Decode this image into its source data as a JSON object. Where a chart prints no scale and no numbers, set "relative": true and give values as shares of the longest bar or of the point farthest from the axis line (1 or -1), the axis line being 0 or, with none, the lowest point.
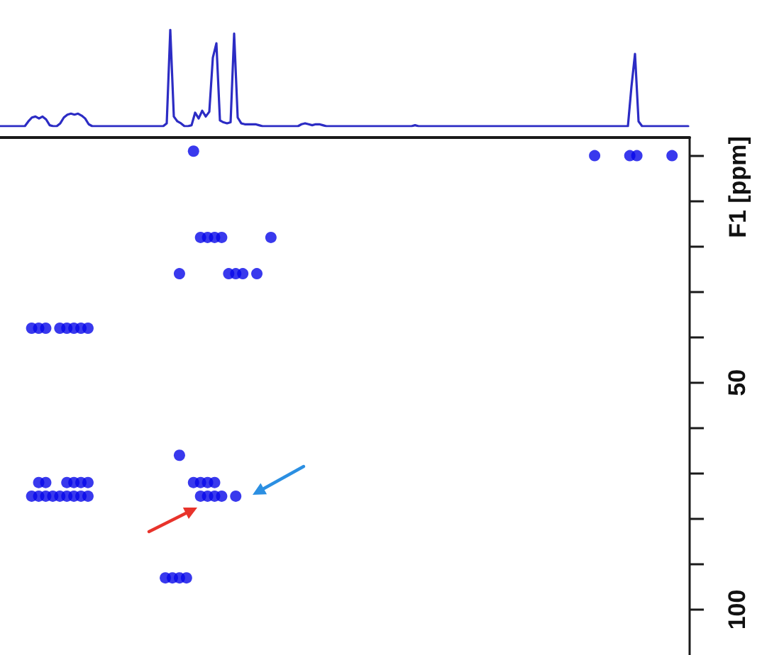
{
  "chart_data": [
    {
      "type": "line",
      "relative": true,
      "tick_labels": false,
      "marker": "none",
      "color": "#2c2cc4",
      "categories": [
        null,
        null,
        null,
        null,
        null,
        null,
        null,
        null,
        null,
        null,
        null,
        null,
        null,
        null,
        null,
        null,
        null,
        null,
        null,
        null,
        null,
        null,
        null,
        null,
        null,
        null,
        null,
        null,
        null,
        null,
        null,
        null,
        null,
        null,
        null,
        null,
        null,
        null,
        null,
        null,
        null,
        null,
        null,
        null,
        null,
        null,
        null,
        null,
        null,
        null,
        null,
        null,
        null,
        null,
        null,
        null,
        null,
        null,
        null,
        null,
        null,
        null,
        null,
        null,
        null,
        null,
        null,
        null,
        null,
        null,
        null,
        null,
        null,
        null,
        null,
        null,
        null,
        null,
        null,
        null,
        null,
        null,
        null,
        null,
        null,
        null,
        null,
        null,
        null,
        null,
        null,
        null,
        null,
        null,
        null,
        null,
        null,
        null,
        null,
        null,
        null,
        null,
        null,
        null,
        null,
        null,
        null,
        null,
        null,
        null,
        null,
        null,
        null,
        null,
        null,
        null,
        null,
        null,
        null,
        null,
        null,
        null,
        null,
        null,
        null,
        null,
        null,
        null,
        null,
        null,
        null,
        null,
        null,
        null,
        null,
        null,
        null,
        null,
        null,
        null,
        null,
        null,
        null,
        null,
        null,
        null,
        null,
        null,
        null,
        null,
        null,
        null,
        null,
        null,
        null,
        null,
        null,
        null,
        null,
        null,
        null,
        null,
        null,
        null,
        null,
        null,
        null,
        null,
        null,
        null,
        null,
        null,
        null,
        null,
        null,
        null,
        null,
        null,
        null,
        null,
        null,
        null,
        null,
        null,
        null,
        null,
        null,
        null,
        null,
        null,
        null,
        null,
        null,
        null,
        null
      ],
      "values": [
        0,
        0,
        0,
        0,
        0,
        0,
        0,
        0,
        0.05,
        0.09,
        0.1,
        0.08,
        0.1,
        0.07,
        0.01,
        0,
        0,
        0.03,
        0.09,
        0.12,
        0.13,
        0.12,
        0.13,
        0.11,
        0.08,
        0.02,
        0,
        0,
        0,
        0,
        0,
        0,
        0,
        0,
        0,
        0,
        0,
        0,
        0,
        0,
        0,
        0,
        0,
        0,
        0,
        0,
        0,
        0.03,
        1,
        0.1,
        0.05,
        0.03,
        0,
        0,
        0.01,
        0.14,
        0.08,
        0.16,
        0.1,
        0.15,
        0.71,
        0.86,
        0.06,
        0.04,
        0.03,
        0.04,
        0.96,
        0.09,
        0.03,
        0.02,
        0.02,
        0.02,
        0.02,
        0.01,
        0,
        0,
        0,
        0,
        0,
        0,
        0,
        0,
        0,
        0,
        0,
        0.02,
        0.03,
        0.02,
        0.01,
        0.02,
        0.02,
        0.01,
        0,
        0,
        0,
        0,
        0,
        0,
        0,
        0,
        0,
        0,
        0,
        0,
        0,
        0,
        0,
        0,
        0,
        0,
        0,
        0,
        0,
        0,
        0,
        0,
        0,
        0.01,
        0,
        0,
        0,
        0,
        0,
        0,
        0,
        0,
        0,
        0,
        0,
        0,
        0,
        0,
        0,
        0,
        0,
        0,
        0,
        0,
        0,
        0,
        0,
        0,
        0,
        0,
        0,
        0,
        0,
        0,
        0,
        0,
        0,
        0,
        0,
        0,
        0,
        0,
        0,
        0,
        0,
        0,
        0,
        0,
        0,
        0,
        0,
        0,
        0,
        0,
        0,
        0,
        0,
        0,
        0,
        0,
        0,
        0,
        0,
        0,
        0.41,
        0.75,
        0.05,
        0,
        0,
        0,
        0,
        0,
        0,
        0,
        0,
        0,
        0,
        0,
        0,
        0,
        0
      ]
    },
    {
      "type": "scatter",
      "tick_labels": "y",
      "marker": "circle",
      "ylabel": "F1 [ppm]",
      "ylim": [
        110,
        -4
      ],
      "yticks": [
        {
          "value": 0,
          "label": null
        },
        {
          "value": 10,
          "label": null
        },
        {
          "value": 20,
          "label": null
        },
        {
          "value": 30,
          "label": null
        },
        {
          "value": 40,
          "label": null
        },
        50,
        {
          "value": 60,
          "label": null
        },
        {
          "value": 70,
          "label": null
        },
        {
          "value": 80,
          "label": null
        },
        {
          "value": 90,
          "label": null
        },
        100
      ],
      "categories": [
        null,
        null,
        null,
        null,
        null,
        null,
        null,
        null,
        null,
        null,
        null,
        null,
        null,
        null,
        null,
        null,
        null,
        null,
        null,
        null,
        null,
        null,
        null,
        null,
        null,
        null,
        null,
        null,
        null,
        null,
        null,
        null,
        null,
        null,
        null,
        null,
        null,
        null,
        null,
        null,
        null,
        null,
        null,
        null,
        null,
        null,
        null,
        null,
        null,
        null,
        null,
        null,
        null,
        null,
        null,
        null,
        null,
        null,
        null,
        null,
        null,
        null,
        null,
        null,
        null,
        null,
        null,
        null,
        null,
        null,
        null,
        null,
        null,
        null,
        null,
        null,
        null,
        null,
        null,
        null,
        null,
        null,
        null,
        null,
        null,
        null,
        null,
        null,
        null,
        null,
        null,
        null,
        null,
        null,
        null,
        null,
        null,
        null
      ],
      "series": [
        {
          "color": "#0808e8",
          "values": [
            null,
            null,
            null,
            null,
            null,
            null,
            null,
            null,
            null,
            null,
            null,
            null,
            null,
            null,
            null,
            null,
            null,
            null,
            null,
            null,
            null,
            null,
            null,
            null,
            null,
            null,
            null,
            -1,
            null,
            null,
            null,
            null,
            null,
            null,
            null,
            null,
            null,
            null,
            null,
            null,
            null,
            null,
            null,
            null,
            null,
            null,
            null,
            null,
            null,
            null,
            null,
            null,
            null,
            null,
            null,
            null,
            null,
            null,
            null,
            null,
            null,
            null,
            null,
            null,
            null,
            null,
            null,
            null,
            null,
            null,
            null,
            null,
            null,
            null,
            null,
            null,
            null,
            null,
            null,
            null,
            null,
            null,
            null,
            null,
            0,
            null,
            null,
            null,
            null,
            0,
            0,
            null,
            null,
            null,
            null,
            0,
            null,
            null
          ]
        },
        {
          "color": "#0808e8",
          "values": [
            null,
            null,
            null,
            null,
            null,
            null,
            null,
            null,
            null,
            null,
            null,
            null,
            null,
            null,
            null,
            null,
            null,
            null,
            null,
            null,
            null,
            null,
            null,
            null,
            null,
            null,
            null,
            null,
            18,
            18,
            18,
            18,
            null,
            null,
            null,
            null,
            null,
            null,
            18,
            null,
            null,
            null,
            null,
            null,
            null,
            null,
            null,
            null,
            null,
            null,
            null,
            null,
            null,
            null,
            null,
            null,
            null,
            null,
            null,
            null,
            null,
            null,
            null,
            null,
            null,
            null,
            null,
            null,
            null,
            null,
            null,
            null,
            null,
            null,
            null,
            null,
            null,
            null,
            null,
            null,
            null,
            null,
            null,
            null,
            null,
            null,
            null,
            null,
            null,
            null,
            null,
            null,
            null,
            null,
            null,
            null,
            null,
            null
          ]
        },
        {
          "color": "#0808e8",
          "values": [
            null,
            null,
            null,
            null,
            null,
            null,
            null,
            null,
            null,
            null,
            null,
            null,
            null,
            null,
            null,
            null,
            null,
            null,
            null,
            null,
            null,
            null,
            null,
            null,
            null,
            26,
            null,
            null,
            null,
            null,
            null,
            null,
            26,
            26,
            26,
            null,
            26,
            null,
            null,
            null,
            null,
            null,
            null,
            null,
            null,
            null,
            null,
            null,
            null,
            null,
            null,
            null,
            null,
            null,
            null,
            null,
            null,
            null,
            null,
            null,
            null,
            null,
            null,
            null,
            null,
            null,
            null,
            null,
            null,
            null,
            null,
            null,
            null,
            null,
            null,
            null,
            null,
            null,
            null,
            null,
            null,
            null,
            null,
            null,
            null,
            null,
            null,
            null,
            null,
            null,
            null,
            null,
            null,
            null,
            null,
            null,
            null,
            null
          ]
        },
        {
          "color": "#0808e8",
          "values": [
            null,
            null,
            null,
            null,
            38,
            38,
            38,
            null,
            38,
            38,
            38,
            38,
            38,
            null,
            null,
            null,
            null,
            null,
            null,
            null,
            null,
            null,
            null,
            null,
            null,
            null,
            null,
            null,
            null,
            null,
            null,
            null,
            null,
            null,
            null,
            null,
            null,
            null,
            null,
            null,
            null,
            null,
            null,
            null,
            null,
            null,
            null,
            null,
            null,
            null,
            null,
            null,
            null,
            null,
            null,
            null,
            null,
            null,
            null,
            null,
            null,
            null,
            null,
            null,
            null,
            null,
            null,
            null,
            null,
            null,
            null,
            null,
            null,
            null,
            null,
            null,
            null,
            null,
            null,
            null,
            null,
            null,
            null,
            null,
            null,
            null,
            null,
            null,
            null,
            null,
            null,
            null,
            null,
            null,
            null,
            null,
            null,
            null
          ]
        },
        {
          "color": "#0808e8",
          "values": [
            null,
            null,
            null,
            null,
            null,
            72,
            72,
            null,
            null,
            72,
            72,
            72,
            72,
            null,
            null,
            null,
            null,
            null,
            null,
            null,
            null,
            null,
            null,
            null,
            null,
            66,
            null,
            72,
            72,
            72,
            72,
            null,
            null,
            null,
            null,
            null,
            null,
            null,
            null,
            null,
            null,
            null,
            null,
            null,
            null,
            null,
            null,
            null,
            null,
            null,
            null,
            null,
            null,
            null,
            null,
            null,
            null,
            null,
            null,
            null,
            null,
            null,
            null,
            null,
            null,
            null,
            null,
            null,
            null,
            null,
            null,
            null,
            null,
            null,
            null,
            null,
            null,
            null,
            null,
            null,
            null,
            null,
            null,
            null,
            null,
            null,
            null,
            null,
            null,
            null,
            null,
            null,
            null,
            null,
            null,
            null,
            null,
            null
          ]
        },
        {
          "color": "#0808e8",
          "values": [
            null,
            null,
            null,
            null,
            75,
            75,
            75,
            75,
            75,
            75,
            75,
            75,
            75,
            null,
            null,
            null,
            null,
            null,
            null,
            null,
            null,
            null,
            null,
            null,
            null,
            null,
            null,
            null,
            75,
            75,
            75,
            75,
            null,
            75,
            null,
            null,
            null,
            null,
            null,
            null,
            null,
            null,
            null,
            null,
            null,
            null,
            null,
            null,
            null,
            null,
            null,
            null,
            null,
            null,
            null,
            null,
            null,
            null,
            null,
            null,
            null,
            null,
            null,
            null,
            null,
            null,
            null,
            null,
            null,
            null,
            null,
            null,
            null,
            null,
            null,
            null,
            null,
            null,
            null,
            null,
            null,
            null,
            null,
            null,
            null,
            null,
            null,
            null,
            null,
            null,
            null,
            null,
            null,
            null,
            null,
            null,
            null,
            null
          ]
        },
        {
          "color": "#0808e8",
          "values": [
            null,
            null,
            null,
            null,
            null,
            null,
            null,
            null,
            null,
            null,
            null,
            null,
            null,
            null,
            null,
            null,
            null,
            null,
            null,
            null,
            null,
            null,
            null,
            93,
            93,
            93,
            93,
            null,
            null,
            null,
            null,
            null,
            null,
            null,
            null,
            null,
            null,
            null,
            null,
            null,
            null,
            null,
            null,
            null,
            null,
            null,
            null,
            null,
            null,
            null,
            null,
            null,
            null,
            null,
            null,
            null,
            null,
            null,
            null,
            null,
            null,
            null,
            null,
            null,
            null,
            null,
            null,
            null,
            null,
            null,
            null,
            null,
            null,
            null,
            null,
            null,
            null,
            null,
            null,
            null,
            null,
            null,
            null,
            null,
            null,
            null,
            null,
            null,
            null,
            null,
            null,
            null,
            null,
            null,
            null,
            null,
            null,
            null
          ]
        }
      ]
    }
  ]
}
